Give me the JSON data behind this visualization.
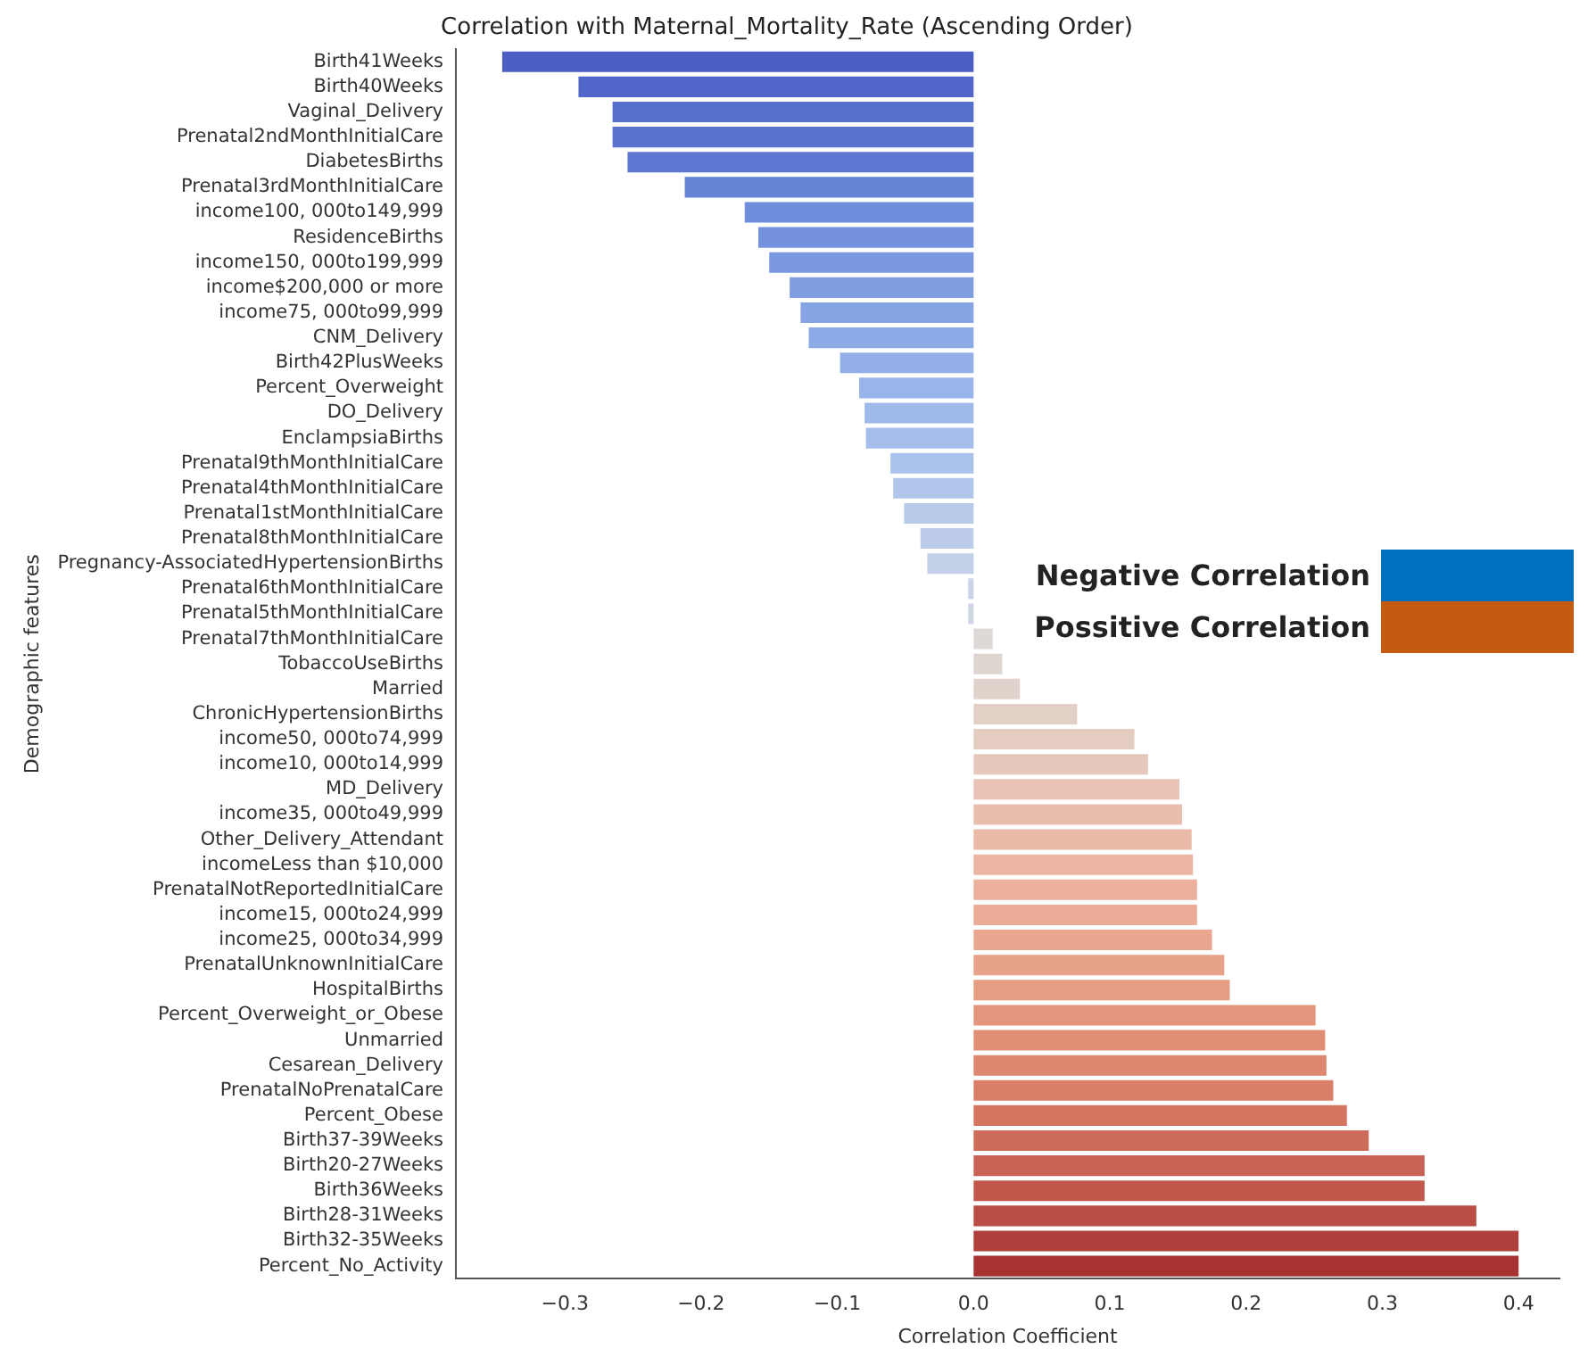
{
  "chart_data": {
    "type": "bar",
    "orientation": "horizontal",
    "title": "Correlation with Maternal_Mortality_Rate (Ascending Order)",
    "xlabel": "Correlation Coefficient",
    "ylabel": "Demographic features",
    "legend": "right",
    "categories": [
      "Birth41Weeks",
      "Birth40Weeks",
      "Vaginal_Delivery",
      "Prenatal2ndMonthInitialCare",
      "DiabetesBirths",
      "Prenatal3rdMonthInitialCare",
      "income100, 000to149,999",
      "ResidenceBirths",
      "income150, 000to199,999",
      "income$200,000 or more",
      "income75, 000to99,999",
      "CNM_Delivery",
      "Birth42PlusWeeks",
      "Percent_Overweight",
      "DO_Delivery",
      "EnclampsiaBirths",
      "Prenatal9thMonthInitialCare",
      "Prenatal4thMonthInitialCare",
      "Prenatal1stMonthInitialCare",
      "Prenatal8thMonthInitialCare",
      "Pregnancy-AssociatedHypertensionBirths",
      "Prenatal6thMonthInitialCare",
      "Prenatal5thMonthInitialCare",
      "Prenatal7thMonthInitialCare",
      "TobaccoUseBirths",
      "Married",
      "ChronicHypertensionBirths",
      "income50, 000to74,999",
      "income10, 000to14,999",
      "MD_Delivery",
      "income35, 000to49,999",
      "Other_Delivery_Attendant",
      "incomeLess than $10,000",
      "PrenatalNotReportedInitialCare",
      "income15, 000to24,999",
      "income25, 000to34,999",
      "PrenatalUnknownInitialCare",
      "HospitalBirths",
      "Percent_Overweight_or_Obese",
      "Unmarried",
      "Cesarean_Delivery",
      "PrenatalNoPrenatalCare",
      "Percent_Obese",
      "Birth37-39Weeks",
      "Birth20-27Weeks",
      "Birth36Weeks",
      "Birth28-31Weeks",
      "Birth32-35Weeks",
      "Percent_No_Activity"
    ],
    "series": [
      {
        "name": "Negative Correlation",
        "color": "#0070c0",
        "values": [
          -0.346,
          -0.29,
          -0.265,
          -0.265,
          -0.254,
          -0.212,
          -0.168,
          -0.158,
          -0.15,
          -0.135,
          -0.127,
          -0.121,
          -0.098,
          -0.084,
          -0.08,
          -0.079,
          -0.061,
          -0.059,
          -0.051,
          -0.039,
          -0.034,
          -0.004,
          -0.004,
          null,
          null,
          null,
          null,
          null,
          null,
          null,
          null,
          null,
          null,
          null,
          null,
          null,
          null,
          null,
          null,
          null,
          null,
          null,
          null,
          null,
          null,
          null,
          null,
          null,
          null
        ],
        "colors": [
          "#4b5ec4",
          "#5166c8",
          "#5670cc",
          "#5a73ce",
          "#5e78d2",
          "#6684d6",
          "#6e8ddb",
          "#7492dd",
          "#7a98df",
          "#809de2",
          "#86a3e4",
          "#8caae6",
          "#92afe8",
          "#98b4ea",
          "#9eb9ea",
          "#a4bdeb",
          "#abc2eb",
          "#b1c6eb",
          "#b7caea",
          "#bdcde9",
          "#c3d0e8",
          "#cad4e6",
          "#d0d6e4",
          null,
          null,
          null,
          null,
          null,
          null,
          null,
          null,
          null,
          null,
          null,
          null,
          null,
          null,
          null,
          null,
          null,
          null,
          null,
          null,
          null,
          null,
          null,
          null,
          null,
          null
        ]
      },
      {
        "name": "Possitive Correlation",
        "color": "#c55a11",
        "values": [
          null,
          null,
          null,
          null,
          null,
          null,
          null,
          null,
          null,
          null,
          null,
          null,
          null,
          null,
          null,
          null,
          null,
          null,
          null,
          null,
          null,
          null,
          null,
          0.014,
          0.021,
          0.034,
          0.076,
          0.118,
          0.128,
          0.151,
          0.153,
          0.16,
          0.161,
          0.164,
          0.164,
          0.175,
          0.184,
          0.188,
          0.251,
          0.258,
          0.259,
          0.264,
          0.274,
          0.29,
          0.331,
          0.331,
          0.369,
          0.4,
          0.4
        ],
        "colors": [
          null,
          null,
          null,
          null,
          null,
          null,
          null,
          null,
          null,
          null,
          null,
          null,
          null,
          null,
          null,
          null,
          null,
          null,
          null,
          null,
          null,
          null,
          null,
          "#ddd9d7",
          "#dfd6d1",
          "#e0d3cc",
          "#e2d0c7",
          "#e4ccc1",
          "#e6c7bb",
          "#e8c3b5",
          "#e9beae",
          "#eabaa8",
          "#ebb5a2",
          "#ebb19c",
          "#eaac96",
          "#e9a790",
          "#e8a28a",
          "#e79c84",
          "#e4957d",
          "#e18e77",
          "#dd8670",
          "#d97e69",
          "#d47562",
          "#ce6c5b",
          "#c86254",
          "#c1584c",
          "#b94d44",
          "#b0403b",
          "#a73232"
        ]
      }
    ],
    "xlim": [
      -0.38,
      0.43
    ],
    "xticks": [
      {
        "value": -0.3,
        "label": "−0.3"
      },
      {
        "value": -0.2,
        "label": "−0.2"
      },
      {
        "value": -0.1,
        "label": "−0.1"
      },
      {
        "value": 0,
        "label": "0.0"
      },
      {
        "value": 0.1,
        "label": "0.1"
      },
      {
        "value": 0.2,
        "label": "0.2"
      },
      {
        "value": 0.3,
        "label": "0.3"
      },
      {
        "value": 0.4,
        "label": "0.4"
      }
    ]
  }
}
